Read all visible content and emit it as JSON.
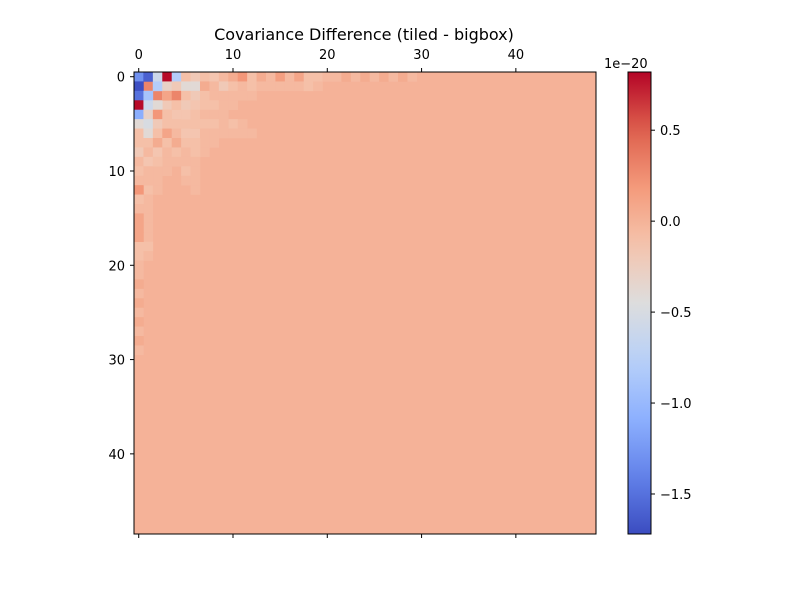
{
  "chart_data": {
    "type": "heatmap",
    "title": "Covariance Difference (tiled - bigbox)",
    "xlabel": "",
    "ylabel": "",
    "size": 49,
    "x_ticks": [
      0,
      10,
      20,
      30,
      40
    ],
    "y_ticks": [
      0,
      10,
      20,
      30,
      40
    ],
    "x_tick_labels": [
      "0",
      "10",
      "20",
      "30",
      "40"
    ],
    "y_tick_labels": [
      "0",
      "10",
      "20",
      "30",
      "40"
    ],
    "xaxis_position": "top",
    "colormap": "coolwarm",
    "vmin": -1.72,
    "vmax": 0.82,
    "background_value": 0.0,
    "colorbar": {
      "offset_text": "1e−20",
      "ticks": [
        0.5,
        0.0,
        -0.5,
        -1.0,
        -1.5
      ],
      "tick_labels": [
        "0.5",
        "0.0",
        "−0.5",
        "−1.0",
        "−1.5"
      ]
    },
    "cells_note_units": "values in units of 1e-20",
    "cells": [
      [
        0,
        0,
        -1.3
      ],
      [
        0,
        1,
        -1.7
      ],
      [
        0,
        2,
        -1.5
      ],
      [
        0,
        3,
        0.8
      ],
      [
        0,
        4,
        -1.1
      ],
      [
        0,
        5,
        -0.4
      ],
      [
        0,
        6,
        -0.1
      ],
      [
        0,
        7,
        -0.1
      ],
      [
        0,
        8,
        -0.2
      ],
      [
        0,
        9,
        -0.05
      ],
      [
        0,
        10,
        -0.1
      ],
      [
        0,
        11,
        -0.05
      ],
      [
        0,
        12,
        0.2
      ],
      [
        0,
        13,
        -0.1
      ],
      [
        0,
        14,
        -0.05
      ],
      [
        0,
        15,
        0.1
      ],
      [
        0,
        16,
        0.1
      ],
      [
        0,
        17,
        0.1
      ],
      [
        1,
        0,
        -1.6
      ],
      [
        1,
        1,
        0.3
      ],
      [
        1,
        2,
        -0.9
      ],
      [
        1,
        3,
        -0.6
      ],
      [
        1,
        4,
        -0.3
      ],
      [
        1,
        5,
        -0.5
      ],
      [
        1,
        6,
        -0.4
      ],
      [
        1,
        7,
        -0.1
      ],
      [
        1,
        8,
        -0.05
      ],
      [
        1,
        9,
        -0.15
      ],
      [
        1,
        10,
        -0.05
      ],
      [
        1,
        11,
        -0.05
      ],
      [
        2,
        0,
        -0.6
      ],
      [
        2,
        1,
        -0.8
      ],
      [
        2,
        2,
        0.3
      ],
      [
        2,
        3,
        -0.4
      ],
      [
        2,
        4,
        0.2
      ],
      [
        2,
        5,
        -0.2
      ],
      [
        2,
        6,
        -0.1
      ],
      [
        2,
        7,
        0.05
      ],
      [
        2,
        8,
        -0.15
      ],
      [
        2,
        9,
        -0.1
      ],
      [
        3,
        0,
        0.8
      ],
      [
        3,
        1,
        -0.3
      ],
      [
        3,
        2,
        0.1
      ],
      [
        3,
        3,
        -0.2
      ],
      [
        3,
        4,
        -0.1
      ],
      [
        3,
        5,
        -0.1
      ],
      [
        3,
        6,
        0.1
      ],
      [
        3,
        7,
        -0.1
      ],
      [
        3,
        8,
        -0.05
      ],
      [
        4,
        0,
        -0.8
      ],
      [
        4,
        1,
        -0.2
      ],
      [
        4,
        2,
        0.3
      ],
      [
        4,
        3,
        -0.1
      ],
      [
        4,
        4,
        -0.15
      ],
      [
        4,
        5,
        -0.1
      ],
      [
        4,
        6,
        -0.05
      ],
      [
        4,
        7,
        0.05
      ],
      [
        4,
        8,
        -0.1
      ],
      [
        4,
        9,
        -0.05
      ],
      [
        5,
        0,
        -0.1
      ],
      [
        5,
        1,
        -0.4
      ],
      [
        5,
        2,
        -0.1
      ],
      [
        5,
        3,
        -0.2
      ],
      [
        5,
        4,
        -0.15
      ],
      [
        5,
        5,
        -0.1
      ],
      [
        5,
        6,
        -0.15
      ],
      [
        5,
        7,
        -0.1
      ],
      [
        5,
        8,
        -0.05
      ],
      [
        5,
        9,
        -0.05
      ],
      [
        5,
        10,
        -0.1
      ],
      [
        5,
        11,
        -0.05
      ],
      [
        6,
        0,
        -0.2
      ],
      [
        6,
        1,
        -0.4
      ],
      [
        6,
        2,
        -0.2
      ],
      [
        6,
        3,
        -0.15
      ],
      [
        6,
        4,
        -0.1
      ],
      [
        6,
        5,
        -0.1
      ],
      [
        6,
        6,
        -0.15
      ],
      [
        6,
        7,
        -0.1
      ],
      [
        6,
        8,
        -0.1
      ],
      [
        6,
        9,
        -0.05
      ],
      [
        6,
        10,
        -0.05
      ],
      [
        6,
        11,
        -0.05
      ],
      [
        6,
        12,
        -0.05
      ],
      [
        7,
        0,
        -0.1
      ],
      [
        7,
        1,
        0.05
      ],
      [
        7,
        2,
        -0.1
      ],
      [
        7,
        3,
        -0.1
      ],
      [
        7,
        4,
        -0.05
      ],
      [
        7,
        5,
        -0.1
      ],
      [
        7,
        6,
        -0.05
      ],
      [
        7,
        7,
        -0.05
      ],
      [
        8,
        0,
        -0.15
      ],
      [
        8,
        1,
        -0.05
      ],
      [
        8,
        2,
        -0.05
      ],
      [
        8,
        3,
        -0.1
      ],
      [
        8,
        4,
        -0.05
      ],
      [
        8,
        5,
        -0.1
      ],
      [
        8,
        6,
        -0.05
      ],
      [
        8,
        7,
        -0.05
      ],
      [
        9,
        0,
        -0.05
      ],
      [
        9,
        1,
        -0.2
      ],
      [
        9,
        2,
        -0.05
      ],
      [
        9,
        3,
        -0.05
      ],
      [
        9,
        4,
        -0.05
      ],
      [
        9,
        5,
        -0.05
      ],
      [
        10,
        0,
        0.05
      ],
      [
        10,
        1,
        -0.1
      ],
      [
        10,
        2,
        -0.05
      ],
      [
        10,
        3,
        -0.05
      ],
      [
        11,
        0,
        0.2
      ],
      [
        11,
        1,
        -0.05
      ],
      [
        11,
        2,
        -0.05
      ],
      [
        12,
        0,
        -0.1
      ],
      [
        12,
        1,
        -0.1
      ],
      [
        12,
        2,
        -0.05
      ],
      [
        13,
        0,
        0.05
      ],
      [
        13,
        1,
        -0.05
      ],
      [
        14,
        0,
        -0.05
      ],
      [
        14,
        1,
        -0.05
      ],
      [
        15,
        0,
        0.15
      ],
      [
        15,
        1,
        -0.05
      ],
      [
        16,
        0,
        -0.05
      ],
      [
        16,
        1,
        -0.05
      ],
      [
        17,
        0,
        0.1
      ],
      [
        17,
        1,
        -0.05
      ],
      [
        18,
        0,
        -0.1
      ],
      [
        18,
        1,
        -0.1
      ],
      [
        19,
        0,
        -0.1
      ],
      [
        19,
        1,
        -0.05
      ],
      [
        20,
        0,
        -0.05
      ],
      [
        21,
        0,
        -0.05
      ],
      [
        22,
        0,
        0.05
      ],
      [
        23,
        0,
        -0.05
      ],
      [
        24,
        0,
        0.05
      ],
      [
        25,
        0,
        -0.05
      ],
      [
        26,
        0,
        0.05
      ],
      [
        27,
        0,
        -0.05
      ],
      [
        28,
        0,
        0.05
      ],
      [
        29,
        0,
        -0.05
      ]
    ]
  }
}
